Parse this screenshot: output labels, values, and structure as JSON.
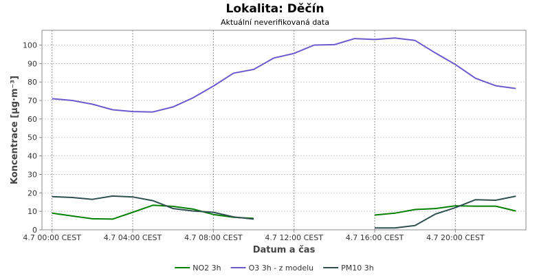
{
  "chart_data": {
    "type": "line",
    "title": "Lokalita: Děčín",
    "subtitle": "Aktuální neverifikovaná data",
    "xlabel": "Datum a čas",
    "ylabel": "Koncentrace [µg·m⁻³]",
    "ylim": [
      0,
      108
    ],
    "xlim": [
      -0.5,
      23.5
    ],
    "y_ticks": [
      0,
      10,
      20,
      30,
      40,
      50,
      60,
      70,
      80,
      90,
      100
    ],
    "x_ticks": [
      {
        "value": 0,
        "label": "4.7 00:00 CEST"
      },
      {
        "value": 4,
        "label": "4.7 04:00 CEST"
      },
      {
        "value": 8,
        "label": "4.7 08:00 CEST"
      },
      {
        "value": 12,
        "label": "4.7 12:00 CEST"
      },
      {
        "value": 16,
        "label": "4.7 16:00 CEST"
      },
      {
        "value": 20,
        "label": "4.7 20:00 CEST"
      }
    ],
    "grid": true,
    "legend_position": "bottom",
    "x": [
      0,
      1,
      2,
      3,
      4,
      5,
      6,
      7,
      8,
      9,
      10,
      11,
      12,
      13,
      14,
      15,
      16,
      17,
      18,
      19,
      20,
      21,
      22,
      23
    ],
    "series": [
      {
        "name": "NO2 3h",
        "color": "#008000",
        "values": [
          9,
          7.5,
          6,
          5.8,
          9.5,
          13.3,
          12.7,
          11.2,
          8.3,
          6.8,
          6.2,
          null,
          null,
          null,
          null,
          null,
          8,
          9,
          11,
          11.5,
          13,
          12.8,
          12.8,
          10.2
        ]
      },
      {
        "name": "O3 3h - z modelu",
        "color": "#6a5acd",
        "values": [
          71,
          70,
          68,
          65,
          64,
          63.8,
          66.5,
          71.5,
          77.8,
          84.8,
          86.8,
          93,
          95.5,
          100,
          100.2,
          103.5,
          103,
          103.8,
          102.5,
          95.8,
          89.5,
          82,
          78,
          76.5
        ]
      },
      {
        "name": "PM10 3h",
        "color": "#2f4f4f",
        "values": [
          18,
          17.5,
          16.5,
          18.3,
          17.8,
          15.8,
          11.5,
          10.2,
          9.5,
          7,
          5.8,
          null,
          null,
          null,
          null,
          null,
          1,
          1,
          2.3,
          8.5,
          12,
          16.3,
          16,
          18.2
        ]
      }
    ]
  }
}
